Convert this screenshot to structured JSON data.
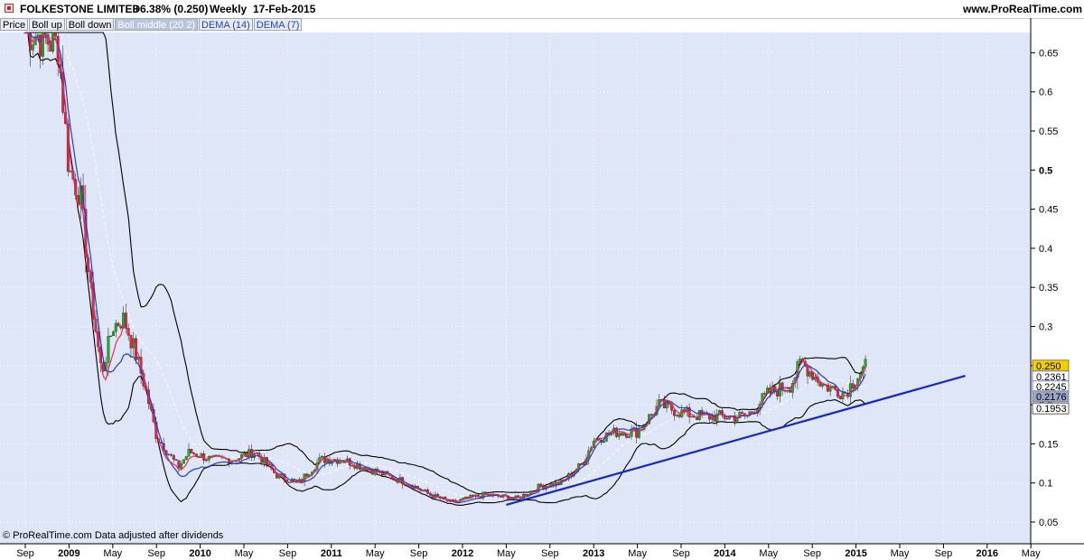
{
  "header": {
    "instrument": "FOLKESTONE LIMITED",
    "change": "+6.38% (0.250)",
    "period": "Weekly",
    "date": "17-Feb-2015",
    "site": "www.ProRealTime.com"
  },
  "legend": [
    {
      "label": "Price",
      "color": "#000000"
    },
    {
      "label": "Boll up",
      "color": "#000000"
    },
    {
      "label": "Boll down",
      "color": "#000000"
    },
    {
      "label": "Boll middle (20 2)",
      "color": "#ffffff"
    },
    {
      "label": "DEMA (14)",
      "color": "#1f3fd0"
    },
    {
      "label": "DEMA (7)",
      "color": "#1f3fd0"
    }
  ],
  "footer": {
    "credit": "© ProRealTime.com  Data adjusted after dividends"
  },
  "colors": {
    "background": "#dfe6f7",
    "up": "#22aa22",
    "down": "#dd2244",
    "dema14": "#1f3fd0",
    "dema7": "#e0304a",
    "trendline": "#1428c8",
    "band": "#000000",
    "price_tag": "#f2d000"
  },
  "chart_data": {
    "type": "candlestick",
    "y_axis": {
      "ticks": [
        "0.05",
        "0.1",
        "0.15",
        "0.2",
        "0.25",
        "0.3",
        "0.35",
        "0.4",
        "0.45",
        "0.5",
        "0.55",
        "0.6",
        "0.65"
      ],
      "bold_ticks": [
        "0.5"
      ],
      "range": [
        0.03,
        0.69
      ]
    },
    "x_axis": {
      "labels": [
        "Sep",
        "2009",
        "May",
        "Sep",
        "2010",
        "May",
        "Sep",
        "2011",
        "May",
        "Sep",
        "2012",
        "May",
        "Sep",
        "2013",
        "May",
        "Sep",
        "2014",
        "May",
        "Sep",
        "2015",
        "May",
        "Sep",
        "2016",
        "May"
      ],
      "bold_labels": [
        "2009",
        "2010",
        "2011",
        "2012",
        "2013",
        "2014",
        "2015",
        "2016"
      ],
      "range": [
        "2008-09",
        "2016-06"
      ]
    },
    "series": [
      {
        "name": "Price",
        "key_points": [
          [
            "2008-09",
            0.68
          ],
          [
            "2008-12",
            0.66
          ],
          [
            "2009-01",
            0.5
          ],
          [
            "2009-02",
            0.47
          ],
          [
            "2009-03",
            0.34
          ],
          [
            "2009-04",
            0.24
          ],
          [
            "2009-05",
            0.3
          ],
          [
            "2009-06",
            0.31
          ],
          [
            "2009-07",
            0.27
          ],
          [
            "2009-08",
            0.22
          ],
          [
            "2009-09",
            0.16
          ],
          [
            "2009-10",
            0.14
          ],
          [
            "2009-11",
            0.12
          ],
          [
            "2009-12",
            0.14
          ],
          [
            "2010-02",
            0.13
          ],
          [
            "2010-04",
            0.13
          ],
          [
            "2010-06",
            0.14
          ],
          [
            "2010-08",
            0.11
          ],
          [
            "2010-10",
            0.1
          ],
          [
            "2010-12",
            0.13
          ],
          [
            "2011-02",
            0.13
          ],
          [
            "2011-04",
            0.12
          ],
          [
            "2011-06",
            0.11
          ],
          [
            "2011-08",
            0.1
          ],
          [
            "2011-10",
            0.085
          ],
          [
            "2011-12",
            0.075
          ],
          [
            "2012-03",
            0.085
          ],
          [
            "2012-06",
            0.08
          ],
          [
            "2012-08",
            0.095
          ],
          [
            "2012-10",
            0.1
          ],
          [
            "2012-12",
            0.125
          ],
          [
            "2013-01",
            0.155
          ],
          [
            "2013-03",
            0.165
          ],
          [
            "2013-05",
            0.165
          ],
          [
            "2013-07",
            0.2
          ],
          [
            "2013-09",
            0.19
          ],
          [
            "2013-11",
            0.185
          ],
          [
            "2014-01",
            0.185
          ],
          [
            "2014-03",
            0.185
          ],
          [
            "2014-05",
            0.215
          ],
          [
            "2014-07",
            0.225
          ],
          [
            "2014-08",
            0.255
          ],
          [
            "2014-10",
            0.225
          ],
          [
            "2014-12",
            0.215
          ],
          [
            "2015-01",
            0.235
          ],
          [
            "2015-02",
            0.25
          ]
        ]
      },
      {
        "name": "DEMA (14)",
        "values_as_labelled": {
          "latest": 0.2361
        }
      },
      {
        "name": "DEMA (7)",
        "values_as_labelled": {
          "latest": 0.2245
        }
      },
      {
        "name": "Boll middle (20 2)",
        "values_as_labelled": {
          "latest": 0.2176
        }
      },
      {
        "name": "Boll down",
        "values_as_labelled": {
          "latest": 0.1953
        }
      },
      {
        "name": "Trendline",
        "points": [
          [
            "2012-05",
            0.072
          ],
          [
            "2015-11",
            0.237
          ]
        ]
      }
    ],
    "value_tags": [
      {
        "label": "0.250",
        "value": 0.25,
        "style": "price"
      },
      {
        "label": "0.2361",
        "value": 0.2361,
        "style": "dema14"
      },
      {
        "label": "0.2245",
        "value": 0.2245,
        "style": "dema7"
      },
      {
        "label": "0.2176",
        "value": 0.2176,
        "style": "middle"
      },
      {
        "label": "0.1953",
        "value": 0.1953,
        "style": "band"
      }
    ]
  }
}
